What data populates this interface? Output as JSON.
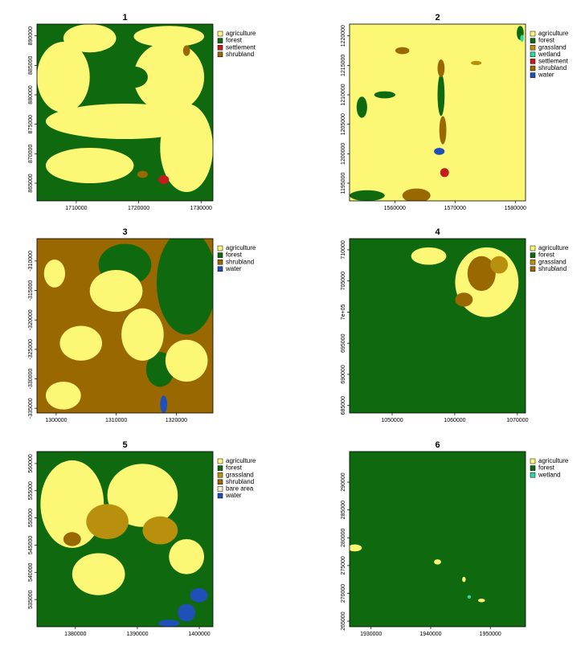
{
  "panels": [
    {
      "title": "1",
      "xlim": [
        1703700,
        1731900
      ],
      "ylim": [
        862000,
        892000
      ],
      "xticks": [
        1710000,
        1720000,
        1730000
      ],
      "yticks": [
        865000,
        870000,
        875000,
        880000,
        885000,
        890000
      ],
      "legend": [
        {
          "name": "agriculture",
          "color": "#fdf776"
        },
        {
          "name": "forest",
          "color": "#0f6a0f"
        },
        {
          "name": "settlement",
          "color": "#c41c1c"
        },
        {
          "name": "shrubland",
          "color": "#9a6800"
        }
      ]
    },
    {
      "title": "2",
      "xlim": [
        1552500,
        1581700
      ],
      "ylim": [
        1192000,
        1222000
      ],
      "xticks": [
        1560000,
        1570000,
        1580000
      ],
      "yticks": [
        1195000,
        1200000,
        1205000,
        1210000,
        1215000,
        1220000
      ],
      "legend": [
        {
          "name": "agriculture",
          "color": "#fdf776"
        },
        {
          "name": "forest",
          "color": "#0f6a0f"
        },
        {
          "name": "grassland",
          "color": "#b8900e"
        },
        {
          "name": "wetland",
          "color": "#2fd8a2"
        },
        {
          "name": "settlement",
          "color": "#c41c1c"
        },
        {
          "name": "shrubland",
          "color": "#9a6800"
        },
        {
          "name": "water",
          "color": "#1f4fb8"
        }
      ]
    },
    {
      "title": "3",
      "xlim": [
        1296800,
        1326100
      ],
      "ylim": [
        -335800,
        -306200
      ],
      "xticks": [
        1300000,
        1310000,
        1320000
      ],
      "yticks": [
        -335000,
        -330000,
        -325000,
        -320000,
        -315000,
        -310000
      ],
      "legend": [
        {
          "name": "agriculture",
          "color": "#fdf776"
        },
        {
          "name": "forest",
          "color": "#0f6a0f"
        },
        {
          "name": "shrubland",
          "color": "#9a6800"
        },
        {
          "name": "water",
          "color": "#1f4fb8"
        }
      ]
    },
    {
      "title": "4",
      "xlim": [
        1043200,
        1071300
      ],
      "ylim": [
        683800,
        711800
      ],
      "xticks": [
        1050000,
        1060000,
        1070000
      ],
      "yticks": [
        685000,
        690000,
        695000,
        {
          "value": 700000,
          "label": "7e+05"
        },
        705000,
        710000
      ],
      "legend": [
        {
          "name": "agriculture",
          "color": "#fdf776"
        },
        {
          "name": "forest",
          "color": "#0f6a0f"
        },
        {
          "name": "grassland",
          "color": "#b8900e"
        },
        {
          "name": "shrubland",
          "color": "#9a6800"
        }
      ]
    },
    {
      "title": "5",
      "xlim": [
        1373800,
        1402200
      ],
      "ylim": [
        530000,
        562200
      ],
      "xticks": [
        1380000,
        1390000,
        1400000
      ],
      "yticks": [
        535000,
        540000,
        545000,
        550000,
        555000,
        560000
      ],
      "legend": [
        {
          "name": "agriculture",
          "color": "#fdf776"
        },
        {
          "name": "forest",
          "color": "#0f6a0f"
        },
        {
          "name": "grassland",
          "color": "#b8900e"
        },
        {
          "name": "shrubland",
          "color": "#9a6800"
        },
        {
          "name": "bare area",
          "color": "#f3efd6"
        },
        {
          "name": "water",
          "color": "#1f4fb8"
        }
      ]
    },
    {
      "title": "6",
      "xlim": [
        1926400,
        1955900
      ],
      "ylim": [
        264000,
        295500
      ],
      "xticks": [
        1930000,
        1940000,
        1950000
      ],
      "yticks": [
        265000,
        270000,
        275000,
        280000,
        285000,
        290000
      ],
      "legend": [
        {
          "name": "agriculture",
          "color": "#fdf776"
        },
        {
          "name": "forest",
          "color": "#0f6a0f"
        },
        {
          "name": "wetland",
          "color": "#2fd8a2"
        }
      ]
    }
  ]
}
